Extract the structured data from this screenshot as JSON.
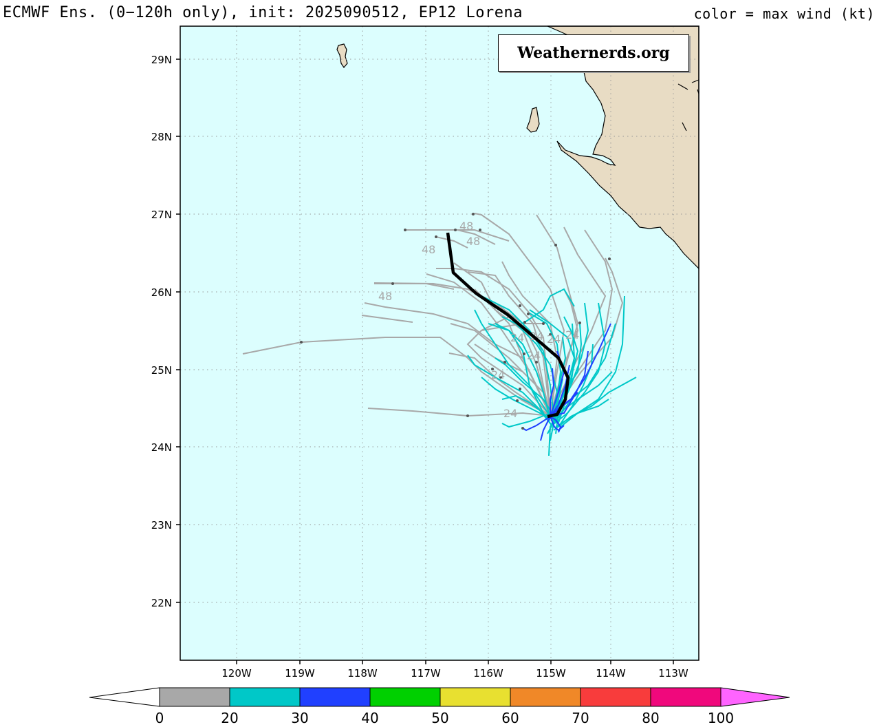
{
  "header": {
    "title": "ECMWF Ens. (0−120h only), init: 2025090512, EP12 Lorena",
    "color_note": "color = max wind (kt)"
  },
  "watermark": "Weathernerds.org",
  "map": {
    "background_color": "#dcfefe",
    "land_color": "#e8dcc4",
    "lat_labels": [
      "29N",
      "28N",
      "27N",
      "26N",
      "25N",
      "24N",
      "23N",
      "22N"
    ],
    "lon_labels": [
      "120W",
      "119W",
      "118W",
      "117W",
      "116W",
      "115W",
      "114W",
      "113W"
    ],
    "track_hour_labels": [
      "48",
      "48",
      "48",
      "48",
      "24",
      "24",
      "24",
      "24",
      "24",
      "24",
      "24"
    ]
  },
  "colorbar": {
    "labels": [
      "0",
      "20",
      "30",
      "40",
      "50",
      "60",
      "70",
      "80",
      "100"
    ],
    "colors": [
      "#a8a8a8",
      "#00c8c8",
      "#2040ff",
      "#00d000",
      "#e8e030",
      "#f08828",
      "#f83c3c",
      "#f0087c"
    ],
    "under_color": "#ffffff",
    "over_color": "#ff64ff"
  }
}
